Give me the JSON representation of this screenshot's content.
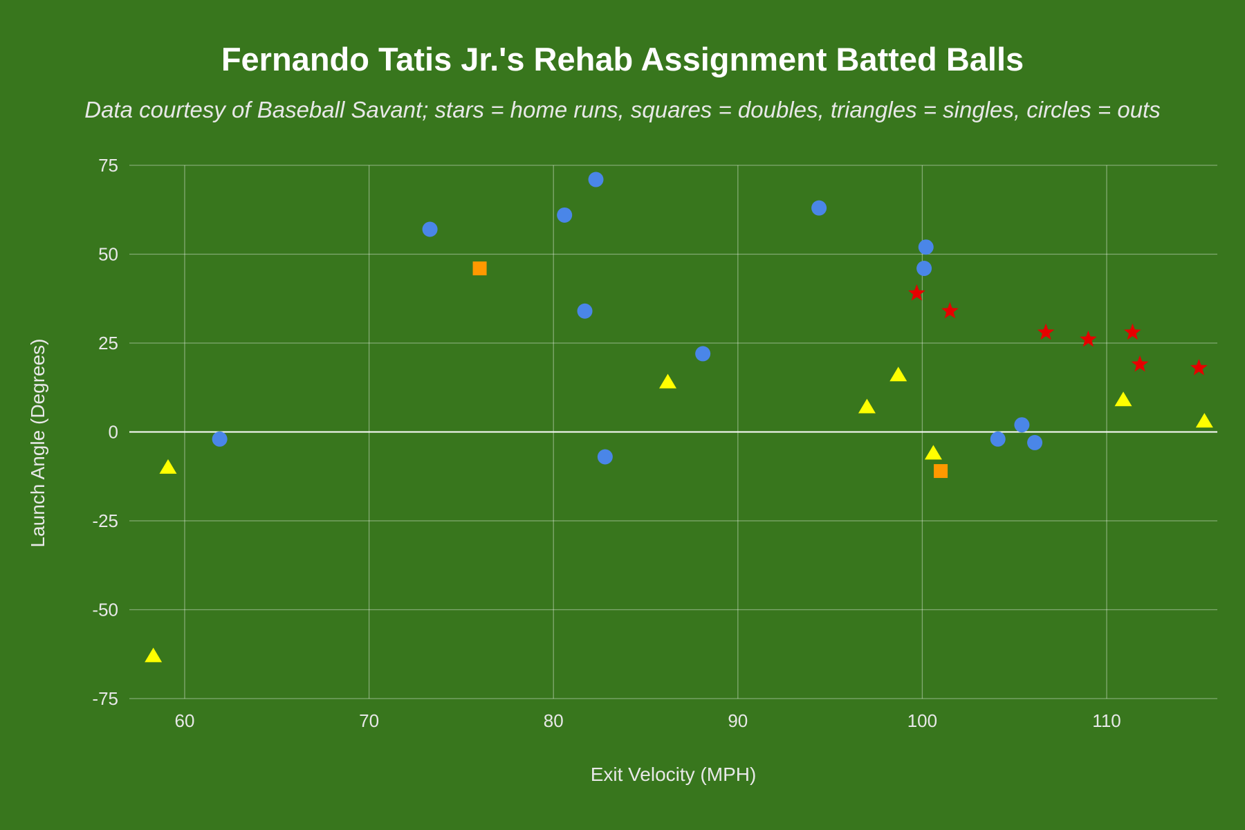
{
  "chart_data": {
    "type": "scatter",
    "title": "Fernando Tatis Jr.'s Rehab Assignment Batted Balls",
    "subtitle": "Data courtesy of Baseball Savant; stars = home runs, squares = doubles, triangles = singles, circles = outs",
    "xlabel": "Exit Velocity (MPH)",
    "ylabel": "Launch Angle (Degrees)",
    "xlim": [
      57,
      116
    ],
    "ylim": [
      -75,
      75
    ],
    "xticks": [
      "60",
      "70",
      "80",
      "90",
      "100",
      "110"
    ],
    "yticks": [
      "75",
      "50",
      "25",
      "0",
      "-25",
      "-50",
      "-75"
    ],
    "grid": true,
    "background_color": "#38761d",
    "series": [
      {
        "marker": "circle",
        "color": "#4a86e8",
        "points": [
          {
            "x": 61.9,
            "y": -2
          },
          {
            "x": 73.3,
            "y": 57
          },
          {
            "x": 80.6,
            "y": 61
          },
          {
            "x": 81.7,
            "y": 34
          },
          {
            "x": 82.3,
            "y": 71
          },
          {
            "x": 82.8,
            "y": -7
          },
          {
            "x": 88.1,
            "y": 22
          },
          {
            "x": 94.4,
            "y": 63
          },
          {
            "x": 100.2,
            "y": 52
          },
          {
            "x": 100.1,
            "y": 46
          },
          {
            "x": 104.1,
            "y": -2
          },
          {
            "x": 105.4,
            "y": 2
          },
          {
            "x": 106.1,
            "y": -3
          }
        ]
      },
      {
        "marker": "square",
        "color": "#ff9900",
        "points": [
          {
            "x": 76.0,
            "y": 46
          },
          {
            "x": 101.0,
            "y": -11
          }
        ]
      },
      {
        "marker": "triangle",
        "color": "#ffff00",
        "points": [
          {
            "x": 58.3,
            "y": -63
          },
          {
            "x": 59.1,
            "y": -10
          },
          {
            "x": 86.2,
            "y": 14
          },
          {
            "x": 97.0,
            "y": 7
          },
          {
            "x": 98.7,
            "y": 16
          },
          {
            "x": 100.6,
            "y": -6
          },
          {
            "x": 110.9,
            "y": 9
          },
          {
            "x": 115.3,
            "y": 3
          }
        ]
      },
      {
        "marker": "star",
        "color": "#e60000",
        "points": [
          {
            "x": 99.7,
            "y": 39
          },
          {
            "x": 101.5,
            "y": 34
          },
          {
            "x": 106.7,
            "y": 28
          },
          {
            "x": 109.0,
            "y": 26
          },
          {
            "x": 111.4,
            "y": 28
          },
          {
            "x": 111.8,
            "y": 19
          },
          {
            "x": 115.0,
            "y": 18
          }
        ]
      }
    ]
  }
}
